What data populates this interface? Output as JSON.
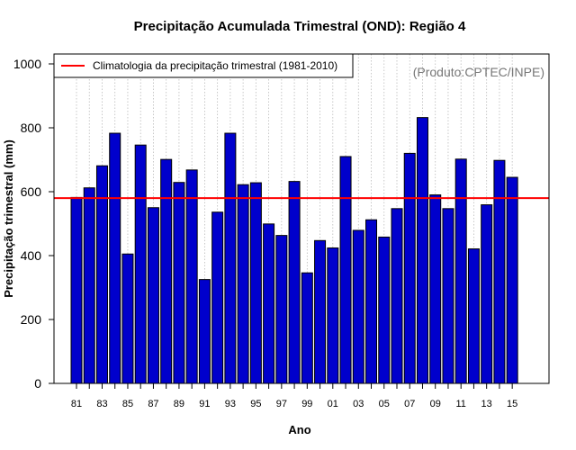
{
  "chart_data": {
    "type": "bar",
    "title": "Precipitação Acumulada Trimestral (OND): Região 4",
    "xlabel": "Ano",
    "ylabel": "Precipitação trimestral (mm)",
    "ylim": [
      0,
      1000
    ],
    "yticks": [
      "0",
      "200",
      "400",
      "600",
      "800",
      "1000"
    ],
    "categories": [
      "81",
      "82",
      "83",
      "84",
      "85",
      "86",
      "87",
      "88",
      "89",
      "90",
      "91",
      "92",
      "93",
      "94",
      "95",
      "96",
      "97",
      "98",
      "99",
      "00",
      "01",
      "02",
      "03",
      "04",
      "05",
      "06",
      "07",
      "08",
      "09",
      "10",
      "11",
      "12",
      "13",
      "14",
      "15"
    ],
    "xtick_labels": [
      "81",
      "83",
      "85",
      "87",
      "89",
      "91",
      "93",
      "95",
      "97",
      "99",
      "01",
      "03",
      "05",
      "07",
      "09",
      "11",
      "13",
      "15"
    ],
    "values": [
      582,
      612,
      681,
      783,
      405,
      746,
      550,
      701,
      629,
      668,
      325,
      536,
      783,
      622,
      628,
      499,
      463,
      632,
      346,
      447,
      424,
      710,
      479,
      512,
      458,
      547,
      720,
      832,
      590,
      547,
      702,
      421,
      559,
      698,
      645
    ],
    "climatology_value": 580,
    "legend": {
      "position": "top-left",
      "entries": [
        "Climatologia da precipitação trimestral (1981-2010)"
      ]
    },
    "annotation": "(Produto:CPTEC/INPE)",
    "grid": "vertical dotted",
    "colors": {
      "bar_fill": "#0000CC",
      "bar_stroke": "#000000",
      "climatology_line": "#FF0000",
      "grid": "#BBBBBB",
      "annotation": "#777777"
    }
  }
}
